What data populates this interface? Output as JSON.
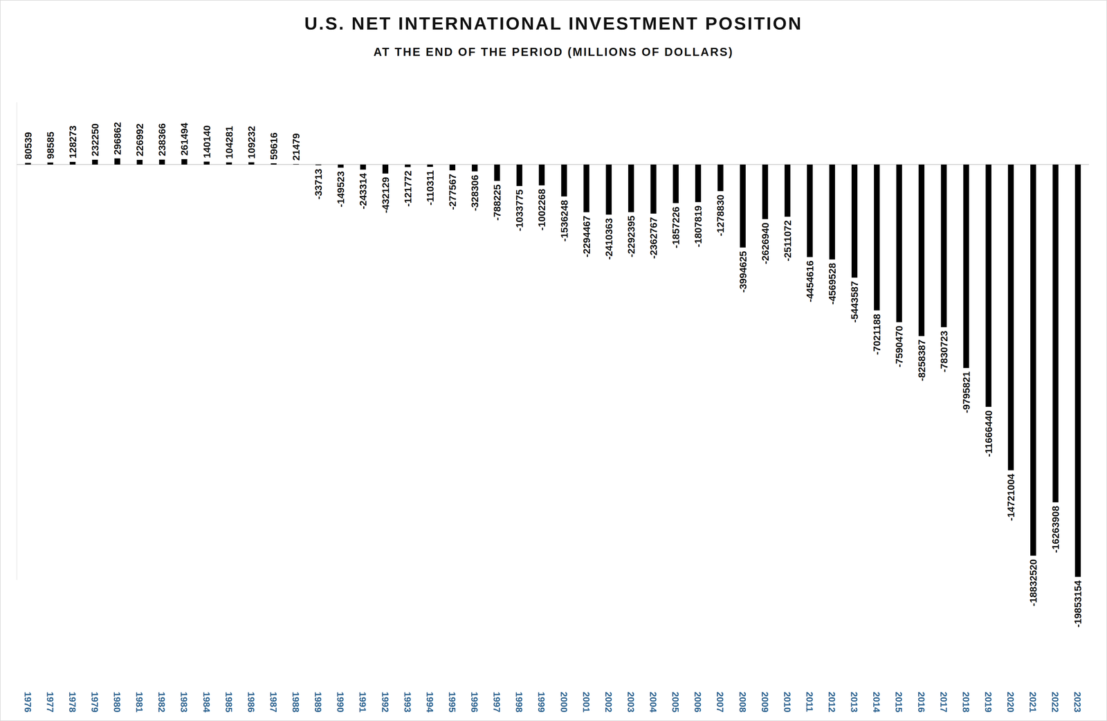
{
  "chart_data": {
    "type": "bar",
    "title": "U.S. NET INTERNATIONAL INVESTMENT POSITION",
    "subtitle": "AT THE END OF THE PERIOD (MILLIONS OF DOLLARS)",
    "categories": [
      "1976",
      "1977",
      "1978",
      "1979",
      "1980",
      "1981",
      "1982",
      "1983",
      "1984",
      "1985",
      "1986",
      "1987",
      "1988",
      "1989",
      "1990",
      "1991",
      "1992",
      "1993",
      "1994",
      "1995",
      "1996",
      "1997",
      "1998",
      "1999",
      "2000",
      "2001",
      "2002",
      "2003",
      "2004",
      "2005",
      "2006",
      "2007",
      "2008",
      "2009",
      "2010",
      "2011",
      "2012",
      "2013",
      "2014",
      "2015",
      "2016",
      "2017",
      "2018",
      "2019",
      "2020",
      "2021",
      "2022",
      "2023"
    ],
    "values": [
      80539,
      98585,
      128273,
      232250,
      296862,
      226992,
      238366,
      261494,
      140140,
      104281,
      109232,
      59616,
      21479,
      -33713,
      -149523,
      -243314,
      -432129,
      -121772,
      -110311,
      -277567,
      -328306,
      -788225,
      -1033775,
      -1002268,
      -1536248,
      -2294467,
      -2410363,
      -2292395,
      -2362767,
      -1857226,
      -1807819,
      -1278830,
      -3994625,
      -2626940,
      -2511072,
      -4454616,
      -4569528,
      -5443587,
      -7021188,
      -7590470,
      -8258387,
      -7830723,
      -9795821,
      -11666440,
      -14721004,
      -18832520,
      -16263908,
      -19853154
    ],
    "color": "#000000",
    "ylim": [
      -20000000,
      3000000
    ],
    "grid": false,
    "data_labels": true,
    "tick_labels": "x"
  }
}
